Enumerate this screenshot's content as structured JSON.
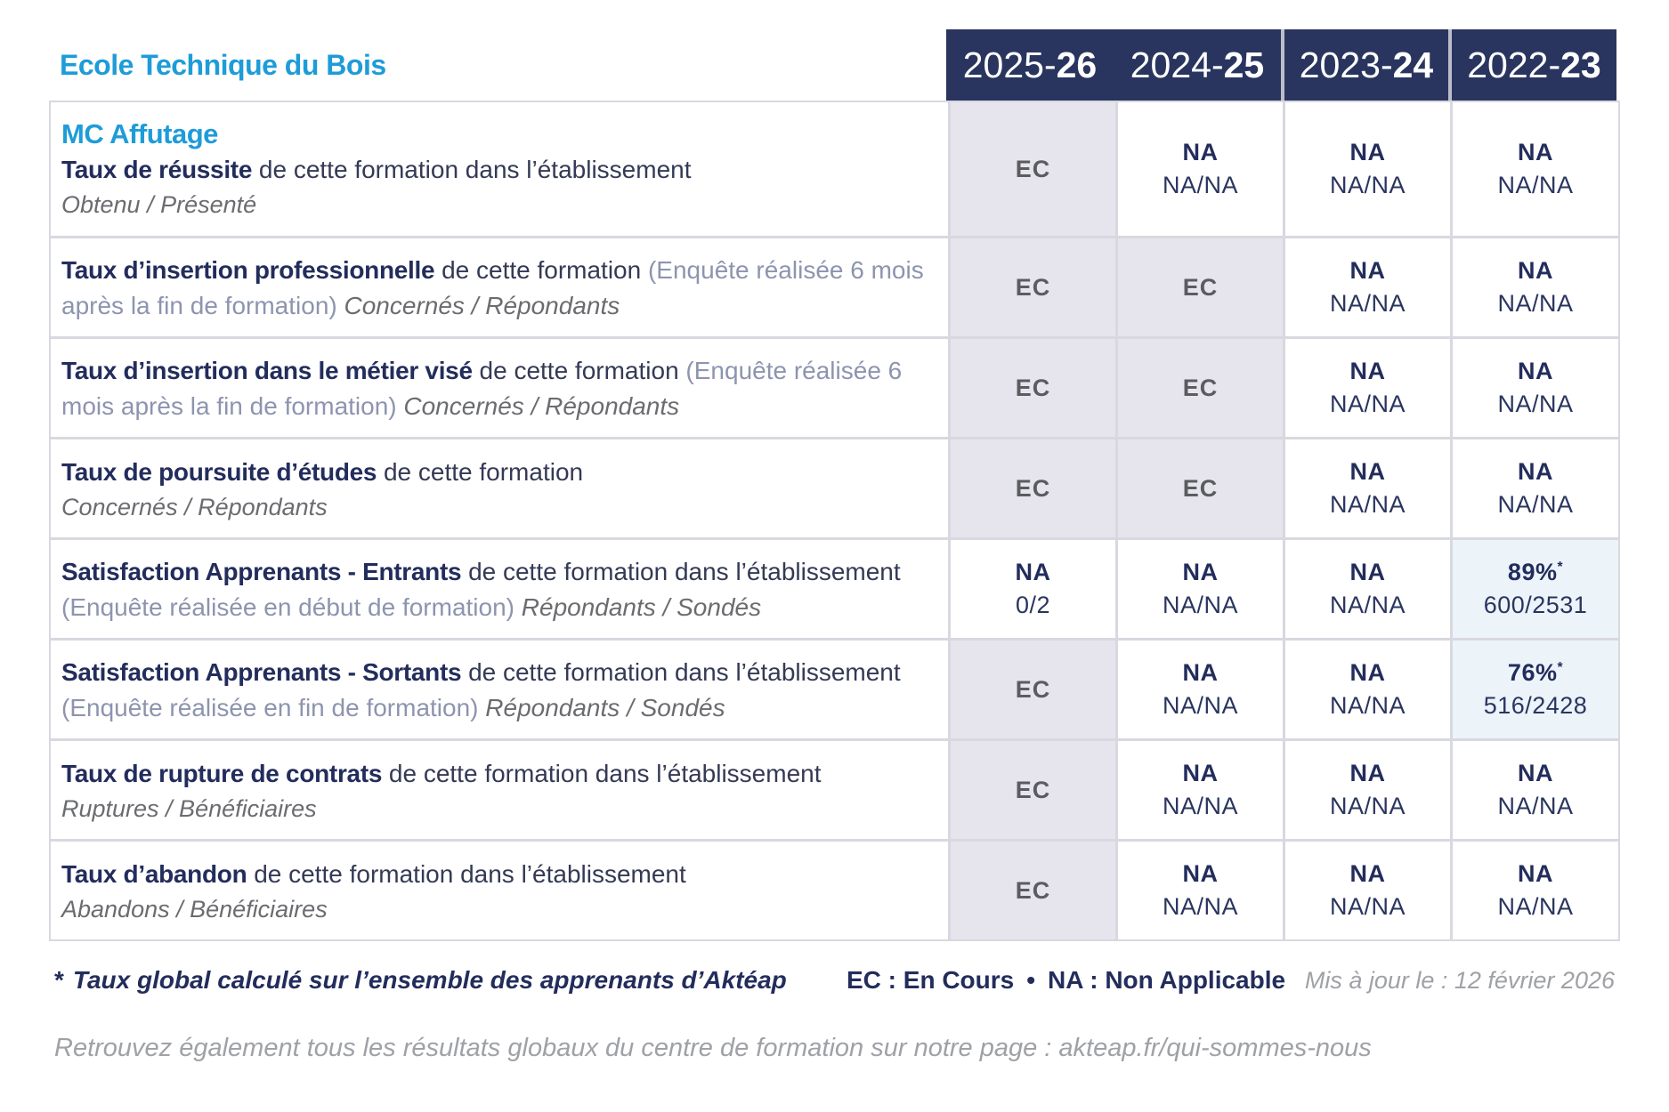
{
  "header": {
    "school_name": "Ecole Technique du Bois",
    "columns": [
      {
        "start": "2025-",
        "end": "26"
      },
      {
        "start": "2024-",
        "end": "25"
      },
      {
        "start": "2023-",
        "end": "24"
      },
      {
        "start": "2022-",
        "end": "23"
      }
    ]
  },
  "program_name": "MC Affutage",
  "rows": [
    {
      "title": "Taux de réussite",
      "desc": "de cette formation dans l’établissement",
      "paren": "",
      "subtitle": "Obtenu / Présenté",
      "cells": [
        {
          "main": "EC"
        },
        {
          "main": "NA",
          "sub": "NA/NA"
        },
        {
          "main": "NA",
          "sub": "NA/NA"
        },
        {
          "main": "NA",
          "sub": "NA/NA"
        }
      ]
    },
    {
      "title": "Taux d’insertion professionnelle",
      "desc": "de cette formation",
      "paren": "(Enquête réalisée 6 mois après la fin de formation)",
      "subtitle": "Concernés / Répondants",
      "cells": [
        {
          "main": "EC"
        },
        {
          "main": "EC"
        },
        {
          "main": "NA",
          "sub": "NA/NA"
        },
        {
          "main": "NA",
          "sub": "NA/NA"
        }
      ]
    },
    {
      "title": "Taux d’insertion dans le métier visé",
      "desc": "de cette formation",
      "paren": "(Enquête réalisée 6 mois après la fin de formation)",
      "subtitle": "Concernés / Répondants",
      "cells": [
        {
          "main": "EC"
        },
        {
          "main": "EC"
        },
        {
          "main": "NA",
          "sub": "NA/NA"
        },
        {
          "main": "NA",
          "sub": "NA/NA"
        }
      ]
    },
    {
      "title": "Taux de poursuite d’études",
      "desc": "de cette formation",
      "paren": "",
      "subtitle": "Concernés / Répondants",
      "cells": [
        {
          "main": "EC"
        },
        {
          "main": "EC"
        },
        {
          "main": "NA",
          "sub": "NA/NA"
        },
        {
          "main": "NA",
          "sub": "NA/NA"
        }
      ]
    },
    {
      "title": "Satisfaction Apprenants - Entrants",
      "desc": "de cette formation dans l’établissement",
      "paren": "(Enquête réalisée en début de formation)",
      "subtitle": "Répondants / Sondés",
      "cells": [
        {
          "main": "NA",
          "sub": "0/2"
        },
        {
          "main": "NA",
          "sub": "NA/NA"
        },
        {
          "main": "NA",
          "sub": "NA/NA"
        },
        {
          "main": "89%",
          "sup": "*",
          "sub": "600/2531"
        }
      ]
    },
    {
      "title": "Satisfaction Apprenants - Sortants",
      "desc": "de cette formation dans l’établissement",
      "paren": "(Enquête réalisée en fin de formation)",
      "subtitle": "Répondants / Sondés",
      "cells": [
        {
          "main": "EC"
        },
        {
          "main": "NA",
          "sub": "NA/NA"
        },
        {
          "main": "NA",
          "sub": "NA/NA"
        },
        {
          "main": "76%",
          "sup": "*",
          "sub": "516/2428"
        }
      ]
    },
    {
      "title": "Taux de rupture de contrats",
      "desc": "de cette formation dans l’établissement",
      "paren": "",
      "subtitle": "Ruptures / Bénéficiaires",
      "cells": [
        {
          "main": "EC"
        },
        {
          "main": "NA",
          "sub": "NA/NA"
        },
        {
          "main": "NA",
          "sub": "NA/NA"
        },
        {
          "main": "NA",
          "sub": "NA/NA"
        }
      ]
    },
    {
      "title": "Taux d’abandon",
      "desc": "de cette formation dans l’établissement",
      "paren": "",
      "subtitle": "Abandons / Bénéficiaires",
      "cells": [
        {
          "main": "EC"
        },
        {
          "main": "NA",
          "sub": "NA/NA"
        },
        {
          "main": "NA",
          "sub": "NA/NA"
        },
        {
          "main": "NA",
          "sub": "NA/NA"
        }
      ]
    }
  ],
  "footer": {
    "note_star": "*",
    "note": "Taux global calculé sur l’ensemble des apprenants d’Aktéap",
    "legend_ec": "EC : En Cours",
    "legend_dot": "•",
    "legend_na": "NA : Non Applicable",
    "updated": "Mis à jour le : 12 février 2026",
    "info_line": "Retrouvez également tous les résultats globaux du centre de formation sur notre page : akteap.fr/qui-sommes-nous"
  },
  "colors": {
    "accent_blue": "#1e9cd8",
    "header_navy": "#2a355f",
    "text_navy": "#232d5c",
    "ec_text": "#5b5c60",
    "ec_cell_bg": "#e6e5ee",
    "highlight_cell_bg": "#ecf4fa",
    "table_border": "#d8d8e0"
  }
}
